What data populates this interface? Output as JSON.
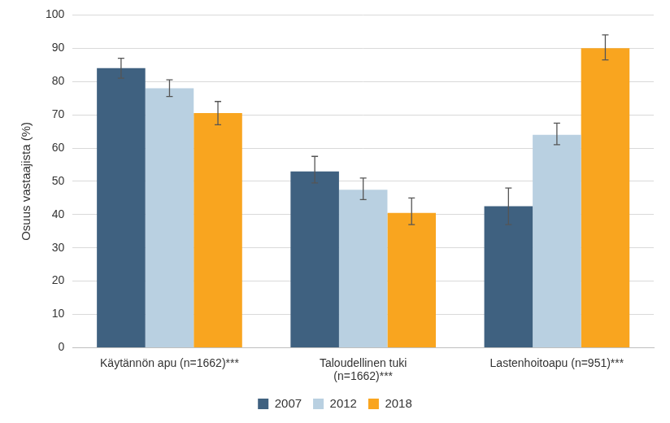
{
  "chart_data": {
    "type": "bar",
    "y_label": "Osuus vastaajista (%)",
    "categories": [
      "Käytännön apu (n=1662)***",
      "Taloudellinen tuki\n(n=1662)***",
      "Lastenhoitoapu (n=951)***"
    ],
    "series": [
      {
        "name": "2007",
        "color": "#3f6180",
        "values": [
          84,
          53,
          42.5
        ],
        "error_low": [
          81,
          49.5,
          37
        ],
        "error_high": [
          87,
          57.5,
          48
        ]
      },
      {
        "name": "2012",
        "color": "#b9d0e1",
        "values": [
          78,
          47.5,
          64
        ],
        "error_low": [
          75.5,
          44.5,
          61
        ],
        "error_high": [
          80.5,
          51,
          67.5
        ]
      },
      {
        "name": "2018",
        "color": "#f9a51f",
        "values": [
          70.5,
          40.5,
          90
        ],
        "error_low": [
          67,
          37,
          86.5
        ],
        "error_high": [
          74,
          45,
          94
        ]
      }
    ],
    "ylim": [
      0,
      100
    ],
    "yticks": [
      0,
      10,
      20,
      30,
      40,
      50,
      60,
      70,
      80,
      90,
      100
    ],
    "grid": true,
    "legend": "bottom"
  }
}
